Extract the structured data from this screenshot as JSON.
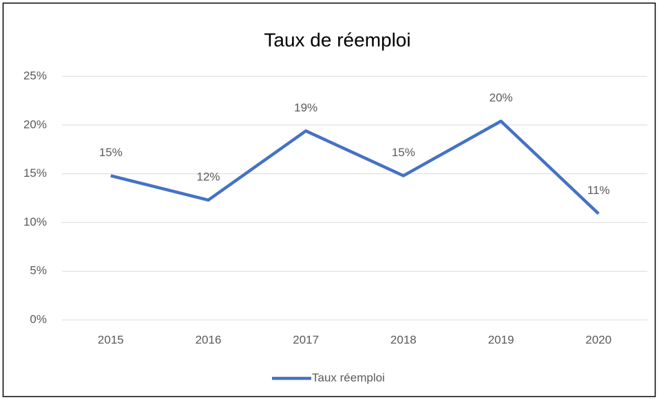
{
  "chart_data": {
    "type": "line",
    "title": "Taux de réemploi",
    "categories": [
      "2015",
      "2016",
      "2017",
      "2018",
      "2019",
      "2020"
    ],
    "series": [
      {
        "name": "Taux réemploi",
        "color": "#4472c4",
        "values": [
          14.8,
          12.3,
          19.4,
          14.8,
          20.4,
          10.9
        ],
        "value_labels": [
          "15%",
          "12%",
          "19%",
          "15%",
          "20%",
          "11%"
        ]
      }
    ],
    "ylim": [
      0,
      25
    ],
    "yticks": [
      {
        "value": 0,
        "label": "0%"
      },
      {
        "value": 5,
        "label": "5%"
      },
      {
        "value": 10,
        "label": "10%"
      },
      {
        "value": 15,
        "label": "15%"
      },
      {
        "value": 20,
        "label": "20%"
      },
      {
        "value": 25,
        "label": "25%"
      }
    ],
    "grid": true,
    "legend": "bottom"
  }
}
